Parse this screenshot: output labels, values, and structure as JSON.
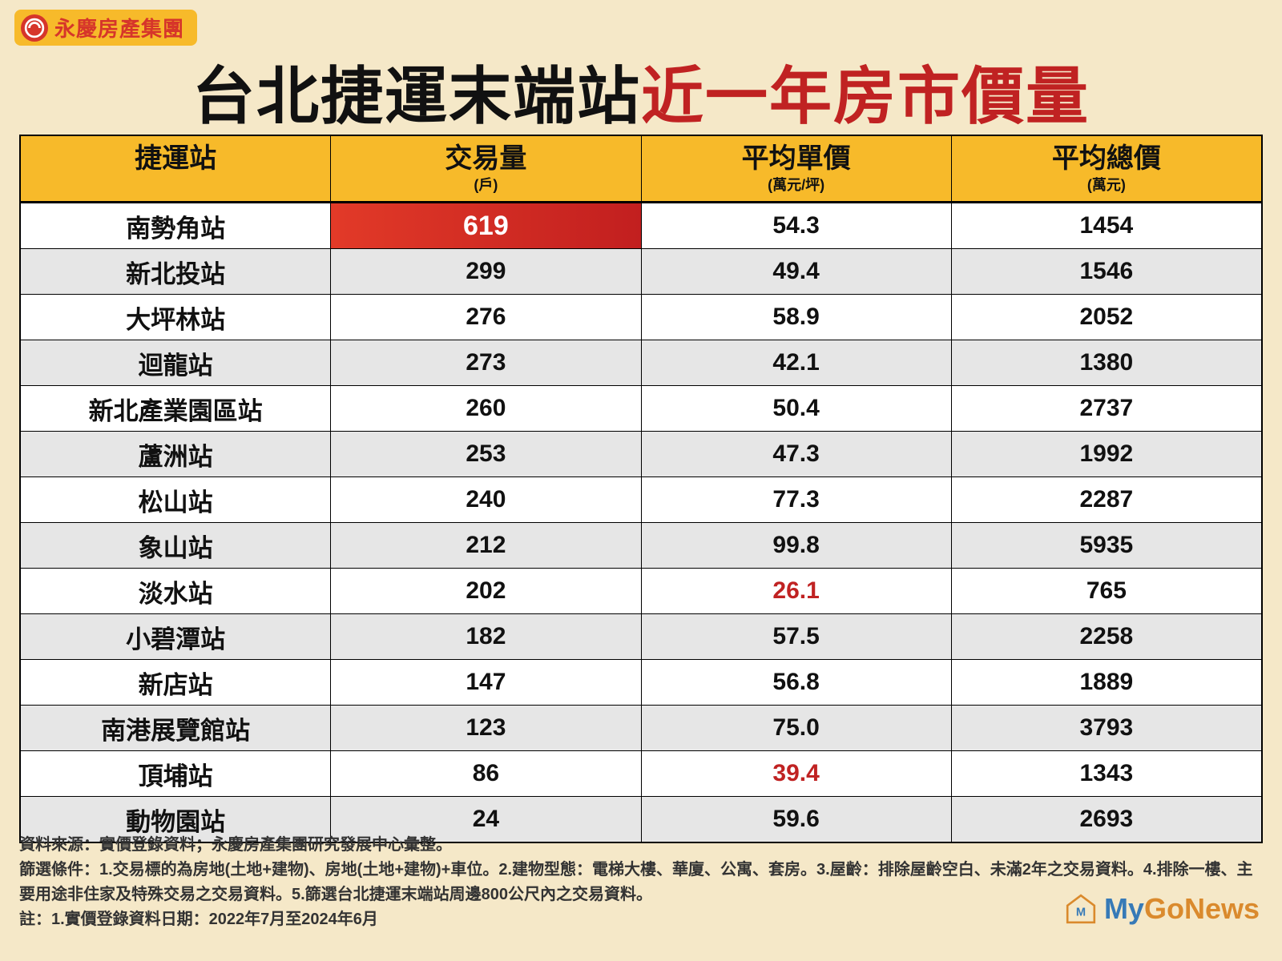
{
  "brand": {
    "name": "永慶房產集團"
  },
  "title": {
    "part1": "台北捷運末端站",
    "part2": "近一年房市價量"
  },
  "colors": {
    "background": "#f5e8c8",
    "header_bg": "#f7ba2a",
    "row_even": "#ffffff",
    "row_odd": "#e6e6e6",
    "border": "#000000",
    "text": "#111111",
    "accent_red": "#c02222",
    "highlight_grad_from": "#e23a28",
    "highlight_grad_to": "#c21f1f",
    "brand_red": "#d6352a"
  },
  "table": {
    "columns": [
      {
        "label": "捷運站",
        "sub": ""
      },
      {
        "label": "交易量",
        "sub": "(戶)"
      },
      {
        "label": "平均單價",
        "sub": "(萬元/坪)"
      },
      {
        "label": "平均總價",
        "sub": "(萬元)"
      }
    ],
    "rows": [
      {
        "station": "南勢角站",
        "volume": "619",
        "unit_price": "54.3",
        "total_price": "1454",
        "volume_highlight": true
      },
      {
        "station": "新北投站",
        "volume": "299",
        "unit_price": "49.4",
        "total_price": "1546"
      },
      {
        "station": "大坪林站",
        "volume": "276",
        "unit_price": "58.9",
        "total_price": "2052"
      },
      {
        "station": "迴龍站",
        "volume": "273",
        "unit_price": "42.1",
        "total_price": "1380"
      },
      {
        "station": "新北產業園區站",
        "volume": "260",
        "unit_price": "50.4",
        "total_price": "2737"
      },
      {
        "station": "蘆洲站",
        "volume": "253",
        "unit_price": "47.3",
        "total_price": "1992"
      },
      {
        "station": "松山站",
        "volume": "240",
        "unit_price": "77.3",
        "total_price": "2287"
      },
      {
        "station": "象山站",
        "volume": "212",
        "unit_price": "99.8",
        "total_price": "5935"
      },
      {
        "station": "淡水站",
        "volume": "202",
        "unit_price": "26.1",
        "total_price": "765",
        "unit_price_red": true
      },
      {
        "station": "小碧潭站",
        "volume": "182",
        "unit_price": "57.5",
        "total_price": "2258"
      },
      {
        "station": "新店站",
        "volume": "147",
        "unit_price": "56.8",
        "total_price": "1889"
      },
      {
        "station": "南港展覽館站",
        "volume": "123",
        "unit_price": "75.0",
        "total_price": "3793"
      },
      {
        "station": "頂埔站",
        "volume": "86",
        "unit_price": "39.4",
        "total_price": "1343",
        "unit_price_red": true
      },
      {
        "station": "動物園站",
        "volume": "24",
        "unit_price": "59.6",
        "total_price": "2693"
      }
    ]
  },
  "footer": {
    "source_label": "資料來源：",
    "source_text": "實價登錄資料；永慶房產集團研究發展中心彙整。",
    "filter_label": "篩選條件：",
    "filter_text": "1.交易標的為房地(土地+建物)、房地(土地+建物)+車位。2.建物型態：電梯大樓、華廈、公寓、套房。3.屋齡：排除屋齡空白、未滿2年之交易資料。4.排除一樓、主要用途非住家及特殊交易之交易資料。5.篩選台北捷運末端站周邊800公尺內之交易資料。",
    "note_label": "註：",
    "note_text": "1.實價登錄資料日期：2022年7月至2024年6月"
  },
  "watermark": {
    "my": "My",
    "go": "Go",
    "news": "News"
  }
}
